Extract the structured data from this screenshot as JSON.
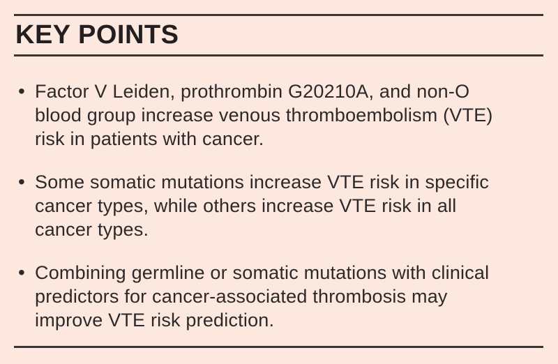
{
  "box": {
    "title": "KEY POINTS",
    "bullet_glyph": "•",
    "bullets": [
      {
        "lines": [
          "Factor V Leiden, prothrombin G20210A, and non-O",
          "blood group increase venous thromboembolism (VTE)",
          "risk in patients with cancer."
        ]
      },
      {
        "lines": [
          "Some somatic mutations increase VTE risk in specific",
          "cancer types, while others increase VTE risk in all",
          "cancer types."
        ]
      },
      {
        "lines": [
          "Combining germline or somatic mutations with clinical",
          "predictors for cancer-associated thrombosis may",
          "improve VTE risk prediction."
        ]
      }
    ],
    "colors": {
      "background": "#fce8de",
      "rule": "#3a3533",
      "heading_text": "#231f20",
      "body_text": "#2d292a"
    }
  }
}
